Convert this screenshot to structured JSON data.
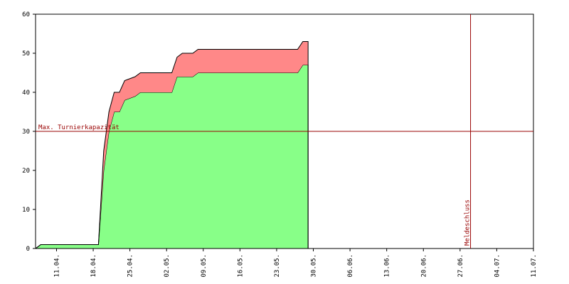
{
  "chart_data": {
    "type": "stacked-area",
    "x": [
      "07.04.",
      "08.04.",
      "19.04.",
      "20.04.",
      "21.04.",
      "22.04.",
      "23.04.",
      "24.04.",
      "26.04.",
      "27.04.",
      "03.05.",
      "04.05.",
      "05.05.",
      "07.05.",
      "08.05.",
      "27.05.",
      "28.05.",
      "29.05."
    ],
    "series": [
      {
        "color": "#88ff88",
        "values": [
          0,
          1,
          1,
          20,
          30,
          35,
          35,
          38,
          39,
          40,
          40,
          44,
          44,
          44,
          45,
          45,
          47,
          47
        ]
      },
      {
        "color": "#ff8888",
        "values": [
          0,
          0,
          0,
          5,
          5,
          5,
          5,
          5,
          5,
          5,
          5,
          5,
          6,
          6,
          6,
          6,
          6,
          6
        ]
      }
    ],
    "xlim": [
      "07.04.",
      "11.07."
    ],
    "xticks": [
      "11.04.",
      "18.04.",
      "25.04.",
      "02.05.",
      "09.05.",
      "16.05.",
      "23.05.",
      "30.05.",
      "06.06.",
      "13.06.",
      "20.06.",
      "27.06.",
      "04.07.",
      "11.07."
    ],
    "ylim": [
      0,
      60
    ],
    "yticks": [
      0,
      10,
      20,
      30,
      40,
      50,
      60
    ],
    "annotations": [
      {
        "axis": "y",
        "value": 30,
        "text": "Max. Turnierkapazität",
        "color": "#990000"
      },
      {
        "axis": "x",
        "value": "29.06.",
        "text": "Meldeschluss",
        "color": "#990000"
      }
    ]
  }
}
